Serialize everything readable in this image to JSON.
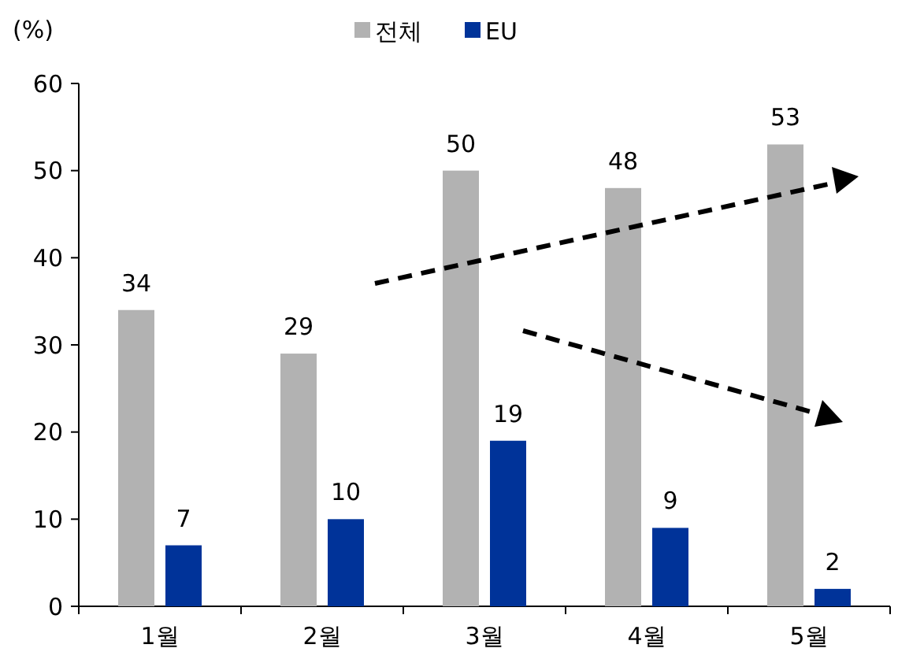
{
  "chart_data": {
    "type": "bar",
    "ylabel": "(%)",
    "categories": [
      "1월",
      "2월",
      "3월",
      "4월",
      "5월"
    ],
    "series": [
      {
        "name": "전체",
        "color": "#b2b2b2",
        "values": [
          34,
          29,
          50,
          48,
          53
        ]
      },
      {
        "name": "EU",
        "color": "#003399",
        "values": [
          7,
          10,
          19,
          9,
          2
        ]
      }
    ],
    "ylim": [
      0,
      60
    ],
    "yticks": [
      0,
      10,
      20,
      30,
      40,
      50,
      60
    ],
    "data_labels": true,
    "legend": "top",
    "grid": false
  }
}
